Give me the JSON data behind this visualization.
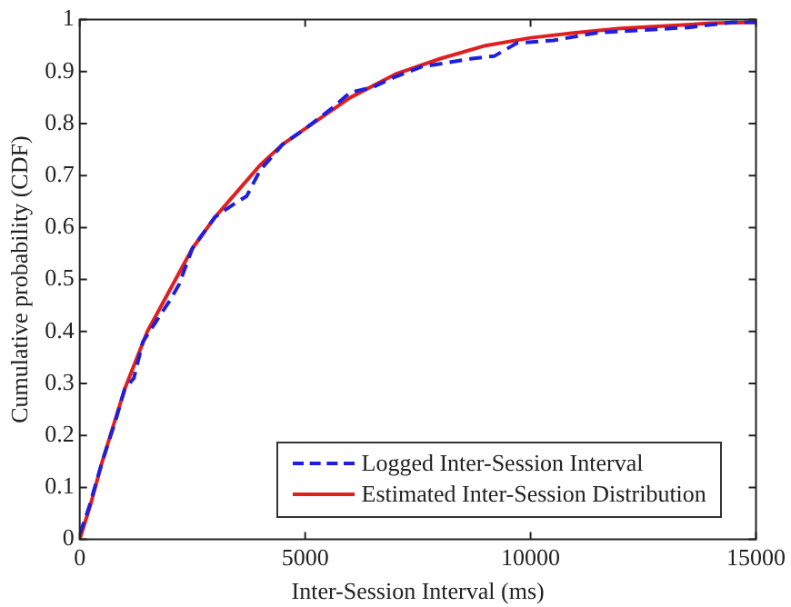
{
  "chart_data": {
    "type": "line",
    "xlabel": "Inter-Session Interval (ms)",
    "ylabel": "Cumulative probability (CDF)",
    "xlim": [
      0,
      15000
    ],
    "xticks": [
      0,
      5000,
      10000,
      15000
    ],
    "ylim": [
      0,
      1
    ],
    "yticks": [
      0,
      0.1,
      0.2,
      0.3,
      0.4,
      0.5,
      0.6,
      0.7,
      0.8,
      0.9,
      1
    ],
    "legend": "bottom right",
    "series": [
      {
        "name": "Logged Inter-Session Interval",
        "color": "#1f1fe0",
        "line_style": "dashed",
        "x": [
          0,
          200,
          500,
          800,
          1000,
          1200,
          1400,
          1700,
          2000,
          2200,
          2500,
          3000,
          3500,
          3700,
          4000,
          4500,
          5000,
          5600,
          6000,
          6500,
          7000,
          7600,
          8000,
          8700,
          9200,
          9700,
          10500,
          11500,
          12500,
          13500,
          14500,
          15000
        ],
        "values": [
          0.01,
          0.06,
          0.15,
          0.23,
          0.29,
          0.31,
          0.38,
          0.42,
          0.46,
          0.49,
          0.56,
          0.62,
          0.65,
          0.66,
          0.71,
          0.76,
          0.79,
          0.83,
          0.86,
          0.87,
          0.89,
          0.91,
          0.915,
          0.925,
          0.93,
          0.955,
          0.96,
          0.975,
          0.98,
          0.985,
          0.995,
          0.995
        ]
      },
      {
        "name": "Estimated Inter-Session Distribution",
        "color": "#e01f1f",
        "line_style": "solid",
        "x": [
          0,
          250,
          500,
          1000,
          1500,
          2000,
          2500,
          3000,
          3500,
          4000,
          4500,
          5000,
          6000,
          7000,
          8000,
          9000,
          10000,
          11000,
          12000,
          13000,
          14000,
          15000
        ],
        "values": [
          0,
          0.07,
          0.15,
          0.29,
          0.4,
          0.48,
          0.56,
          0.62,
          0.67,
          0.72,
          0.76,
          0.79,
          0.85,
          0.895,
          0.925,
          0.95,
          0.965,
          0.975,
          0.983,
          0.988,
          0.993,
          0.995
        ]
      }
    ]
  }
}
